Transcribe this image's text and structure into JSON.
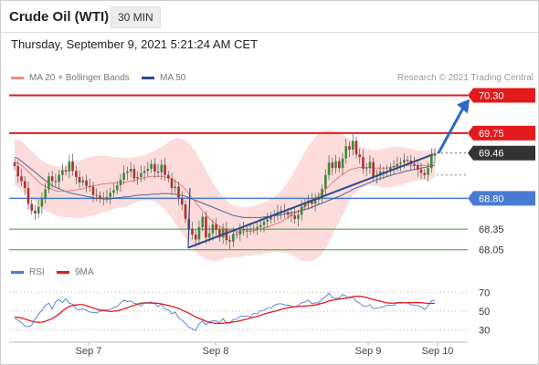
{
  "header": {
    "title": "Crude Oil (WTI)",
    "timeframe": "30 MIN",
    "datetime": "Thursday, September 9, 2021 5:21:24 AM CET"
  },
  "legend": {
    "ma20": "MA 20 + Bollinger Bands",
    "ma50": "MA 50",
    "credit": "Research © 2021 Trading Central"
  },
  "rsi_legend": {
    "rsi": "RSI",
    "ma": "9MA"
  },
  "colors": {
    "red": "#e31a1c",
    "blue": "#4a7bd0",
    "green": "#3a9a3a",
    "dark": "#333333",
    "navy": "#2c4a8a",
    "band": "#fbd2cf",
    "bull": "#3c8a3c",
    "bear": "#b03030"
  },
  "chart_data": [
    {
      "type": "candlestick",
      "x_ticks": [
        "Sep 7",
        "Sep 8",
        "Sep 9",
        "Sep 10"
      ],
      "ylim": [
        67.9,
        70.4
      ],
      "levels": [
        {
          "value": 70.3,
          "label": "70.30",
          "style": "resistance",
          "color": "#e31a1c"
        },
        {
          "value": 69.75,
          "label": "69.75",
          "style": "resistance",
          "color": "#e31a1c"
        },
        {
          "value": 69.46,
          "label": "69.46",
          "style": "last-price",
          "color": "#333333"
        },
        {
          "value": 68.8,
          "label": "68.80",
          "style": "pivot",
          "color": "#4a7bd0"
        },
        {
          "value": 68.35,
          "label": "68.35",
          "style": "support",
          "color": "#3a9a3a"
        },
        {
          "value": 68.05,
          "label": "68.05",
          "style": "support",
          "color": "#3a9a3a"
        }
      ],
      "close": [
        69.27,
        69.12,
        69.05,
        68.95,
        68.72,
        68.62,
        68.58,
        68.68,
        68.81,
        68.93,
        69.12,
        69.05,
        69.04,
        69.14,
        69.21,
        69.19,
        69.34,
        69.2,
        69.11,
        69.03,
        69.06,
        68.98,
        68.97,
        68.85,
        68.84,
        68.79,
        68.81,
        68.82,
        68.88,
        68.92,
        68.99,
        69.07,
        69.17,
        69.19,
        69.23,
        69.09,
        69.11,
        69.17,
        69.2,
        69.23,
        69.3,
        69.19,
        69.18,
        69.29,
        69.14,
        69.09,
        68.95,
        68.97,
        68.81,
        68.71,
        68.5,
        68.35,
        68.27,
        68.2,
        68.38,
        68.53,
        68.23,
        68.29,
        68.42,
        68.34,
        68.23,
        68.35,
        68.19,
        68.17,
        68.28,
        68.27,
        68.35,
        68.33,
        68.35,
        68.35,
        68.36,
        68.38,
        68.41,
        68.46,
        68.49,
        68.54,
        68.55,
        68.6,
        68.62,
        68.6,
        68.56,
        68.55,
        68.5,
        68.56,
        68.68,
        68.73,
        68.77,
        68.72,
        68.79,
        68.79,
        68.94,
        69.14,
        69.32,
        69.24,
        69.34,
        69.24,
        69.38,
        69.56,
        69.51,
        69.64,
        69.44,
        69.4,
        69.23,
        69.24,
        69.33,
        69.11,
        69.13,
        69.19,
        69.19,
        69.19,
        69.25,
        69.27,
        69.3,
        69.32,
        69.36,
        69.35,
        69.3,
        69.28,
        69.22,
        69.17,
        69.14,
        69.24,
        69.42,
        69.46
      ],
      "ma50": [
        69.4,
        69.38,
        69.34,
        69.3,
        69.26,
        69.22,
        69.18,
        69.14,
        69.1,
        69.06,
        69.02,
        68.99,
        68.96,
        68.94,
        68.92,
        68.9,
        68.88,
        68.87,
        68.86,
        68.85,
        68.84,
        68.83,
        68.82,
        68.81,
        68.8,
        68.8,
        68.79,
        68.79,
        68.79,
        68.8,
        68.81,
        68.81,
        68.82,
        68.82,
        68.83,
        68.84,
        68.84,
        68.85,
        68.85,
        68.85,
        68.86,
        68.86,
        68.86,
        68.87,
        68.87,
        68.87,
        68.86,
        68.86,
        68.85,
        68.84,
        68.83,
        68.81,
        68.79,
        68.77,
        68.75,
        68.73,
        68.71,
        68.69,
        68.67,
        68.65,
        68.63,
        68.61,
        68.59,
        68.57,
        68.55,
        68.54,
        68.53,
        68.52,
        68.52,
        68.52,
        68.52,
        68.52,
        68.52,
        68.53,
        68.53,
        68.54,
        68.55,
        68.55,
        68.56,
        68.57,
        68.58,
        68.59,
        68.6,
        68.61,
        68.62,
        68.64,
        68.65,
        68.67,
        68.69,
        68.71,
        68.73,
        68.75,
        68.77,
        68.79,
        68.81,
        68.83,
        68.85,
        68.88,
        68.9,
        68.93,
        68.95,
        68.97,
        68.99,
        69.01,
        69.03,
        69.05,
        69.07,
        69.09,
        69.1,
        69.12,
        69.13,
        69.15,
        69.16,
        69.17,
        69.19,
        69.2,
        69.21,
        69.22,
        69.23,
        69.24,
        69.25,
        69.26,
        69.27,
        69.28
      ],
      "ma20": [
        69.33,
        69.31,
        69.28,
        69.24,
        69.19,
        69.14,
        69.09,
        69.04,
        69.0,
        68.97,
        68.95,
        68.93,
        68.91,
        68.9,
        68.9,
        68.9,
        68.91,
        68.91,
        68.92,
        68.93,
        68.94,
        68.96,
        68.97,
        68.98,
        68.99,
        69.0,
        69.01,
        69.01,
        69.02,
        69.02,
        69.03,
        69.03,
        69.03,
        69.04,
        69.05,
        69.06,
        69.08,
        69.09,
        69.1,
        69.11,
        69.12,
        69.12,
        69.12,
        69.12,
        69.11,
        69.1,
        69.08,
        69.05,
        69.02,
        68.98,
        68.93,
        68.87,
        68.81,
        68.74,
        68.68,
        68.62,
        68.56,
        68.51,
        68.46,
        68.42,
        68.39,
        68.37,
        68.35,
        68.33,
        68.32,
        68.31,
        68.31,
        68.31,
        68.32,
        68.32,
        68.33,
        68.34,
        68.35,
        68.37,
        68.38,
        68.4,
        68.42,
        68.44,
        68.46,
        68.49,
        68.52,
        68.55,
        68.58,
        68.61,
        68.64,
        68.68,
        68.72,
        68.76,
        68.8,
        68.84,
        68.88,
        68.93,
        68.98,
        69.03,
        69.07,
        69.11,
        69.15,
        69.18,
        69.21,
        69.23,
        69.24,
        69.25,
        69.25,
        69.25,
        69.25,
        69.24,
        69.24,
        69.24,
        69.24,
        69.24,
        69.25,
        69.26,
        69.27,
        69.27,
        69.28,
        69.28,
        69.28,
        69.28,
        69.28,
        69.28,
        69.28,
        69.28,
        69.3,
        69.32
      ],
      "bb_upper": [
        69.67,
        69.66,
        69.63,
        69.59,
        69.54,
        69.49,
        69.44,
        69.39,
        69.35,
        69.32,
        69.3,
        69.28,
        69.27,
        69.26,
        69.27,
        69.28,
        69.29,
        69.31,
        69.33,
        69.35,
        69.37,
        69.39,
        69.4,
        69.41,
        69.42,
        69.42,
        69.42,
        69.42,
        69.41,
        69.4,
        69.4,
        69.39,
        69.39,
        69.39,
        69.39,
        69.4,
        69.41,
        69.42,
        69.43,
        69.45,
        69.47,
        69.49,
        69.52,
        69.55,
        69.58,
        69.62,
        69.65,
        69.67,
        69.68,
        69.67,
        69.64,
        69.6,
        69.54,
        69.47,
        69.39,
        69.3,
        69.21,
        69.12,
        69.03,
        68.95,
        68.88,
        68.82,
        68.77,
        68.73,
        68.7,
        68.68,
        68.67,
        68.67,
        68.67,
        68.68,
        68.69,
        68.7,
        68.72,
        68.74,
        68.76,
        68.79,
        68.82,
        68.86,
        68.91,
        68.97,
        69.04,
        69.12,
        69.21,
        69.3,
        69.39,
        69.48,
        69.56,
        69.63,
        69.69,
        69.74,
        69.77,
        69.79,
        69.8,
        69.79,
        69.78,
        69.76,
        69.73,
        69.7,
        69.66,
        69.62,
        69.59,
        69.56,
        69.54,
        69.52,
        69.51,
        69.5,
        69.5,
        69.51,
        69.52,
        69.53,
        69.54,
        69.55,
        69.55,
        69.55,
        69.54,
        69.53,
        69.52,
        69.51,
        69.5,
        69.5,
        69.5,
        69.5,
        69.51,
        69.53
      ],
      "bb_lower": [
        68.99,
        68.96,
        68.93,
        68.89,
        68.84,
        68.79,
        68.74,
        68.69,
        68.65,
        68.62,
        68.6,
        68.58,
        68.55,
        68.54,
        68.53,
        68.52,
        68.53,
        68.51,
        68.51,
        68.51,
        68.51,
        68.53,
        68.54,
        68.55,
        68.56,
        68.58,
        68.6,
        68.6,
        68.63,
        68.64,
        68.66,
        68.67,
        68.67,
        68.69,
        68.71,
        68.72,
        68.75,
        68.76,
        68.77,
        68.77,
        68.77,
        68.75,
        68.72,
        68.69,
        68.64,
        68.58,
        68.51,
        68.43,
        68.36,
        68.29,
        68.22,
        68.14,
        68.08,
        68.01,
        67.97,
        67.94,
        67.91,
        67.9,
        67.89,
        67.89,
        67.9,
        67.92,
        67.93,
        67.93,
        67.94,
        67.94,
        67.95,
        67.95,
        67.97,
        67.96,
        67.97,
        67.98,
        67.98,
        68.0,
        68.0,
        68.01,
        68.02,
        68.02,
        68.01,
        68.01,
        68.0,
        67.98,
        67.95,
        67.92,
        67.89,
        67.88,
        67.88,
        67.89,
        67.91,
        67.94,
        67.99,
        68.07,
        68.16,
        68.27,
        68.36,
        68.46,
        68.57,
        68.66,
        68.76,
        68.84,
        68.89,
        68.94,
        68.96,
        68.98,
        68.99,
        68.98,
        68.98,
        68.97,
        68.96,
        68.95,
        68.96,
        68.97,
        68.99,
        68.99,
        69.02,
        69.03,
        69.04,
        69.05,
        69.06,
        69.06,
        69.06,
        69.06,
        69.09,
        69.11
      ],
      "annotations": [
        {
          "type": "trendline",
          "from": [
            68.08,
            68.08
          ],
          "to": [
            69.44,
            69.44
          ]
        },
        {
          "type": "arrow",
          "target_level": 70.3
        }
      ]
    },
    {
      "type": "line",
      "indicator": "RSI",
      "ylim": [
        20,
        80
      ],
      "y_ticks": [
        70,
        50,
        30
      ],
      "series": [
        {
          "name": "RSI",
          "color": "#4a7bd0",
          "values": [
            42.4,
            40.3,
            37.8,
            34.4,
            33.4,
            35.1,
            41.7,
            46.9,
            50.8,
            56.1,
            58.4,
            52.2,
            60.0,
            62.5,
            59.2,
            63.4,
            58.4,
            57.4,
            52.5,
            51.3,
            52.3,
            51.0,
            48.9,
            48.7,
            48.1,
            50.0,
            50.8,
            51.5,
            51.7,
            54.0,
            54.9,
            58.8,
            61.8,
            60.2,
            60.8,
            58.2,
            57.7,
            55.6,
            59.1,
            59.1,
            59.9,
            58.0,
            54.8,
            57.6,
            52.2,
            51.4,
            47.2,
            49.0,
            42.9,
            40.5,
            36.8,
            33.1,
            31.3,
            29.6,
            36.5,
            39.7,
            35.4,
            39.0,
            39.7,
            39.6,
            37.8,
            42.2,
            37.6,
            37.2,
            41.3,
            41.5,
            44.4,
            44.9,
            44.9,
            43.7,
            47.9,
            47.2,
            50.7,
            50.8,
            53.2,
            53.3,
            56.3,
            57.6,
            57.9,
            56.7,
            56.3,
            55.8,
            54.1,
            56.2,
            59.0,
            59.7,
            61.8,
            57.6,
            58.9,
            58.6,
            62.9,
            65.3,
            69.2,
            64.5,
            63.5,
            63.9,
            67.7,
            66.0,
            63.7,
            65.0,
            60.3,
            58.5,
            55.4,
            55.2,
            56.9,
            52.4,
            53.5,
            53.8,
            54.6,
            56.4,
            56.2,
            56.4,
            59.3,
            59.6,
            58.8,
            59.0,
            56.8,
            56.5,
            56.0,
            54.7,
            51.6,
            55.9,
            60.9,
            61.7
          ]
        },
        {
          "name": "9MA",
          "color": "#e31a1c",
          "values": [
            43.8,
            43.4,
            42.7,
            41.7,
            40.4,
            39.4,
            38.5,
            38.2,
            38.4,
            39.3,
            40.6,
            42.2,
            44.5,
            47.0,
            50.1,
            52.9,
            54.9,
            56.0,
            56.6,
            56.9,
            56.9,
            55.8,
            54.6,
            53.4,
            52.1,
            51.2,
            50.8,
            50.1,
            49.6,
            50.0,
            50.3,
            51.2,
            52.5,
            53.6,
            55.0,
            56.2,
            57.4,
            58.5,
            58.6,
            58.6,
            58.6,
            58.5,
            58.2,
            57.7,
            56.9,
            56.1,
            55.0,
            54.0,
            52.8,
            51.2,
            49.6,
            47.8,
            45.9,
            43.7,
            42.4,
            40.9,
            39.4,
            38.3,
            37.5,
            37.1,
            36.9,
            37.2,
            37.6,
            38.1,
            38.7,
            39.0,
            39.8,
            40.8,
            41.6,
            42.5,
            43.6,
            44.5,
            45.6,
            46.8,
            48.0,
            48.9,
            49.8,
            50.8,
            51.8,
            52.8,
            53.5,
            54.2,
            54.6,
            54.9,
            55.2,
            55.5,
            55.8,
            56.0,
            56.5,
            57.4,
            58.3,
            59.5,
            60.8,
            61.6,
            62.2,
            62.8,
            63.3,
            63.8,
            64.6,
            65.3,
            65.8,
            65.9,
            65.2,
            64.4,
            63.5,
            62.4,
            61.4,
            60.6,
            59.6,
            58.8,
            58.5,
            58.6,
            58.7,
            58.7,
            58.9,
            59.0,
            59.1,
            59.2,
            59.1,
            59.0,
            58.6,
            58.3,
            58.2,
            58.3
          ]
        }
      ]
    }
  ]
}
